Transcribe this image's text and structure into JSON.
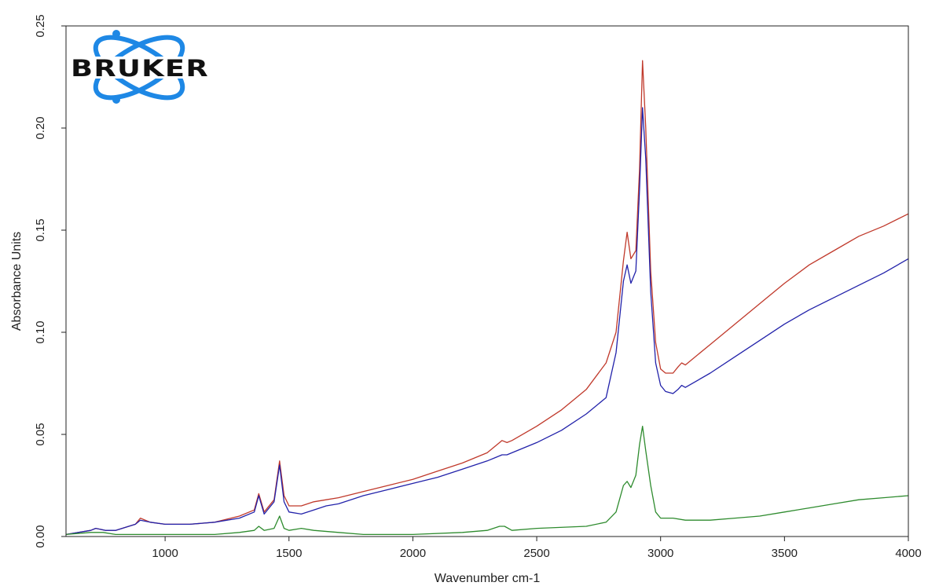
{
  "chart_data": {
    "type": "line",
    "title": "",
    "xlabel": "Wavenumber cm-1",
    "ylabel": "Absorbance Units",
    "xlim": [
      600,
      4000
    ],
    "ylim": [
      0,
      0.25
    ],
    "x_ticks": [
      1000,
      1500,
      2000,
      2500,
      3000,
      3500,
      4000
    ],
    "x_tick_labels": [
      "1000",
      "1500",
      "2000",
      "2500",
      "3000",
      "3500",
      "4000"
    ],
    "y_ticks": [
      0,
      0.05,
      0.1,
      0.15,
      0.2,
      0.25
    ],
    "y_tick_labels": [
      "0.00",
      "0.05",
      "0.10",
      "0.15",
      "0.20",
      "0.25"
    ],
    "grid": false,
    "legend": "none",
    "series": [
      {
        "color": "#c0392b",
        "x": [
          600,
          700,
          720,
          760,
          800,
          880,
          900,
          940,
          1000,
          1100,
          1200,
          1300,
          1360,
          1378,
          1400,
          1440,
          1462,
          1480,
          1500,
          1550,
          1600,
          1650,
          1700,
          1800,
          1900,
          2000,
          2100,
          2200,
          2300,
          2340,
          2360,
          2380,
          2400,
          2500,
          2600,
          2700,
          2780,
          2820,
          2850,
          2865,
          2880,
          2900,
          2915,
          2927,
          2940,
          2960,
          2980,
          3000,
          3020,
          3050,
          3070,
          3085,
          3100,
          3200,
          3300,
          3400,
          3500,
          3600,
          3700,
          3800,
          3900,
          4000
        ],
        "y": [
          0.001,
          0.003,
          0.004,
          0.003,
          0.003,
          0.006,
          0.009,
          0.007,
          0.006,
          0.006,
          0.007,
          0.01,
          0.013,
          0.021,
          0.012,
          0.018,
          0.037,
          0.02,
          0.015,
          0.015,
          0.017,
          0.018,
          0.019,
          0.022,
          0.025,
          0.028,
          0.032,
          0.036,
          0.041,
          0.045,
          0.047,
          0.046,
          0.047,
          0.054,
          0.062,
          0.072,
          0.085,
          0.1,
          0.135,
          0.149,
          0.136,
          0.14,
          0.18,
          0.233,
          0.2,
          0.13,
          0.095,
          0.082,
          0.08,
          0.08,
          0.083,
          0.085,
          0.084,
          0.094,
          0.104,
          0.114,
          0.124,
          0.133,
          0.14,
          0.147,
          0.152,
          0.158
        ]
      },
      {
        "color": "#2222aa",
        "x": [
          600,
          700,
          720,
          760,
          800,
          880,
          900,
          940,
          1000,
          1100,
          1200,
          1300,
          1360,
          1378,
          1400,
          1440,
          1462,
          1480,
          1500,
          1550,
          1600,
          1650,
          1700,
          1800,
          1900,
          2000,
          2100,
          2200,
          2300,
          2340,
          2360,
          2380,
          2400,
          2500,
          2600,
          2700,
          2780,
          2820,
          2850,
          2865,
          2880,
          2900,
          2915,
          2927,
          2940,
          2960,
          2980,
          3000,
          3020,
          3050,
          3070,
          3085,
          3100,
          3200,
          3300,
          3400,
          3500,
          3600,
          3700,
          3800,
          3900,
          4000
        ],
        "y": [
          0.001,
          0.003,
          0.004,
          0.003,
          0.003,
          0.006,
          0.008,
          0.007,
          0.006,
          0.006,
          0.007,
          0.009,
          0.012,
          0.02,
          0.011,
          0.017,
          0.035,
          0.017,
          0.012,
          0.011,
          0.013,
          0.015,
          0.016,
          0.02,
          0.023,
          0.026,
          0.029,
          0.033,
          0.037,
          0.039,
          0.04,
          0.04,
          0.041,
          0.046,
          0.052,
          0.06,
          0.068,
          0.09,
          0.125,
          0.133,
          0.124,
          0.13,
          0.17,
          0.21,
          0.185,
          0.12,
          0.085,
          0.074,
          0.071,
          0.07,
          0.072,
          0.074,
          0.073,
          0.08,
          0.088,
          0.096,
          0.104,
          0.111,
          0.117,
          0.123,
          0.129,
          0.136
        ]
      },
      {
        "color": "#2e8b2e",
        "x": [
          600,
          700,
          750,
          800,
          1000,
          1200,
          1300,
          1360,
          1378,
          1400,
          1440,
          1462,
          1480,
          1500,
          1550,
          1600,
          1700,
          1800,
          2000,
          2200,
          2300,
          2350,
          2370,
          2400,
          2500,
          2700,
          2780,
          2820,
          2850,
          2865,
          2880,
          2900,
          2915,
          2927,
          2940,
          2960,
          2980,
          3000,
          3050,
          3100,
          3150,
          3200,
          3300,
          3400,
          3500,
          3600,
          3700,
          3800,
          3900,
          4000
        ],
        "y": [
          0.001,
          0.002,
          0.002,
          0.001,
          0.001,
          0.001,
          0.002,
          0.003,
          0.005,
          0.003,
          0.004,
          0.01,
          0.004,
          0.003,
          0.004,
          0.003,
          0.002,
          0.001,
          0.001,
          0.002,
          0.003,
          0.005,
          0.005,
          0.003,
          0.004,
          0.005,
          0.007,
          0.012,
          0.025,
          0.027,
          0.024,
          0.03,
          0.045,
          0.054,
          0.042,
          0.025,
          0.012,
          0.009,
          0.009,
          0.008,
          0.008,
          0.008,
          0.009,
          0.01,
          0.012,
          0.014,
          0.016,
          0.018,
          0.019,
          0.02
        ]
      }
    ]
  },
  "logo": {
    "text": "BRUKER",
    "color": "#1e88e5"
  }
}
